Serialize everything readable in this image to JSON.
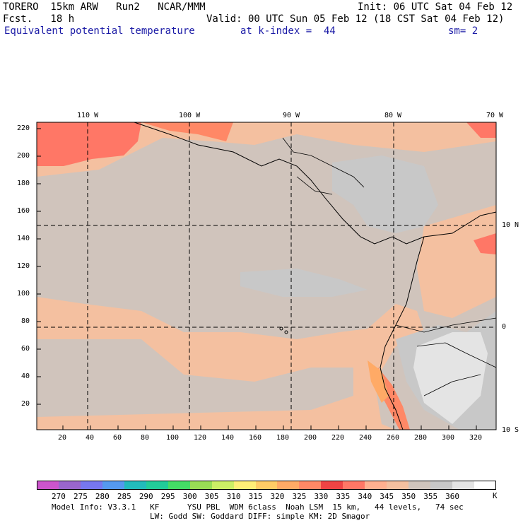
{
  "header": {
    "title_left": "TORERO  15km ARW   Run2   NCAR/MMM",
    "fcst_left": "Fcst.   18 h",
    "init_right": "Init: 06 UTC Sat 04 Feb 12",
    "valid_right": "Valid: 00 UTC Sun 05 Feb 12 (18 CST Sat 04 Feb 12)",
    "field_name": "Equivalent potential temperature",
    "level": "at k-index =  44",
    "smoothing": "sm= 2"
  },
  "map": {
    "top_lon_labels": [
      "110 W",
      "100 W",
      "90 W",
      "80 W",
      "70 W"
    ],
    "right_lat_labels": [
      "10 N",
      "0",
      "10 S"
    ],
    "y_ticks": [
      "20",
      "40",
      "60",
      "80",
      "100",
      "120",
      "140",
      "160",
      "180",
      "200",
      "220"
    ],
    "x_ticks": [
      "20",
      "40",
      "60",
      "80",
      "100",
      "120",
      "140",
      "160",
      "180",
      "200",
      "220",
      "240",
      "260",
      "280",
      "300",
      "320"
    ]
  },
  "colorbar": {
    "labels": [
      "270",
      "275",
      "280",
      "285",
      "290",
      "295",
      "300",
      "305",
      "310",
      "315",
      "320",
      "325",
      "330",
      "335",
      "340",
      "345",
      "350",
      "355",
      "360"
    ],
    "unit": "K",
    "colors": [
      "#cc55cc",
      "#9966cc",
      "#7777ee",
      "#5599ee",
      "#22bbbb",
      "#22cc99",
      "#44dd66",
      "#99dd55",
      "#ccee66",
      "#ffee77",
      "#ffcc66",
      "#ffaa66",
      "#ff8866",
      "#ee4444",
      "#ff7766",
      "#ffb090",
      "#f4c0a0",
      "#d0c4bc",
      "#c8c8c8",
      "#e4e4e4",
      "#ffffff"
    ]
  },
  "footer": {
    "line1": "Model Info: V3.3.1   KF      YSU PBL  WDM 6class  Noah LSM  15 km,   44 levels,   74 sec",
    "line2": "LW: Godd SW: Goddard DIFF: simple KM: 2D Smagor"
  }
}
